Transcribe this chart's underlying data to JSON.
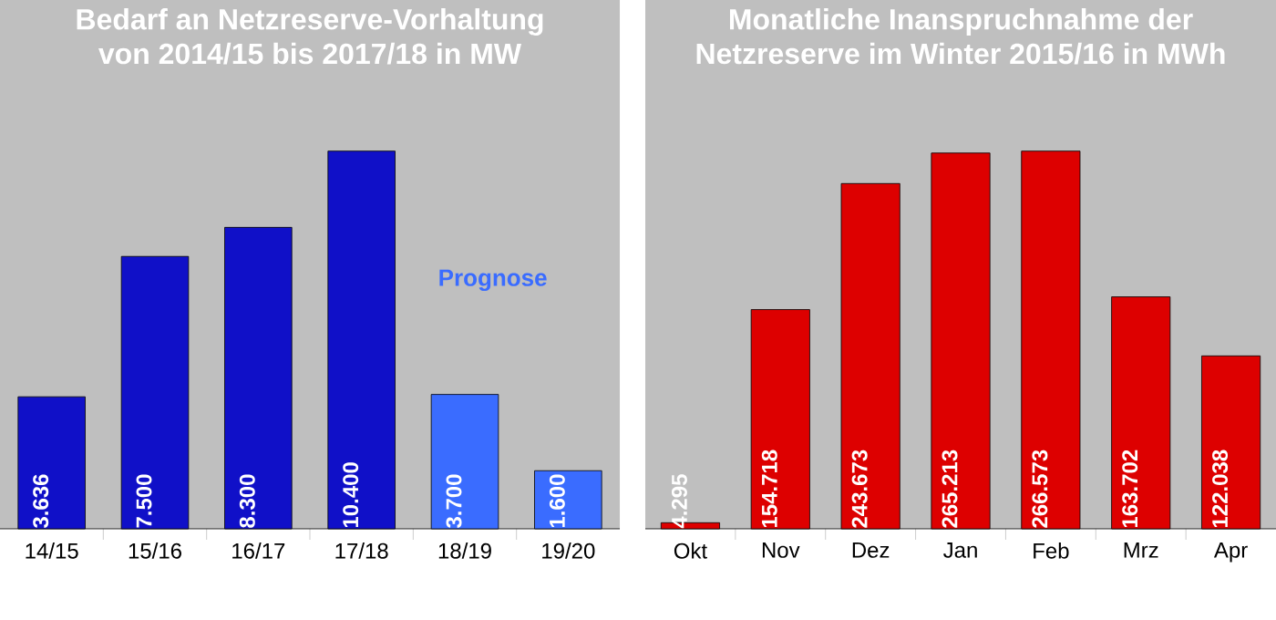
{
  "chart_data": [
    {
      "type": "bar",
      "title": "Bedarf an Netzreserve-Vorhaltung",
      "subtitle": "von 2014/15 bis 2017/18 in MW",
      "categories": [
        "14/15",
        "15/16",
        "16/17",
        "17/18",
        "18/19",
        "19/20"
      ],
      "values": [
        3636,
        7500,
        8300,
        10400,
        3700,
        1600
      ],
      "colors": [
        "#1010c8",
        "#1010c8",
        "#1010c8",
        "#1010c8",
        "#3a6cff",
        "#3a6cff"
      ],
      "value_labels": [
        "3.636",
        "7.500",
        "8.300",
        "10.400",
        "3.700",
        "1.600"
      ],
      "annotations": [
        "Prognose"
      ]
    },
    {
      "type": "bar",
      "title": "Monatliche Inanspruchnahme der",
      "subtitle": "Netzreserve im Winter 2015/16 in MWh",
      "categories": [
        "Okt",
        "Nov",
        "Dez",
        "Jan",
        "Feb",
        "Mrz",
        "Apr"
      ],
      "values": [
        4295,
        154718,
        243673,
        265213,
        266573,
        163702,
        122038
      ],
      "color": "#dd0000",
      "value_labels": [
        "4.295",
        "154.718",
        "243.673",
        "265.213",
        "266.573",
        "163.702",
        "122.038"
      ]
    }
  ]
}
